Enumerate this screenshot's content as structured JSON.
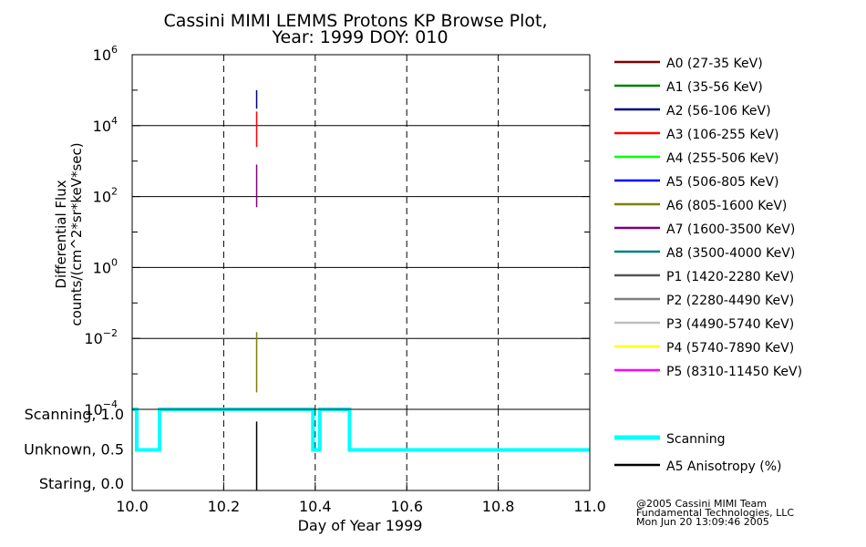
{
  "chart_data": {
    "type": "line",
    "title": "Cassini MIMI LEMMS Protons KP Browse Plot,",
    "subtitle": "Year: 1999 DOY: 010",
    "top_panel": {
      "ylabel_line1": "Differential Flux",
      "ylabel_line2": "counts/(cm^2*sr*keV*sec)",
      "yscale": "log",
      "ylim_exp": [
        -4,
        6
      ],
      "ytick_exps": [
        -4,
        -2,
        0,
        2,
        4,
        6
      ],
      "xlim": [
        10.0,
        11.0
      ],
      "grid": true,
      "spikes": [
        {
          "channel": "A2",
          "x": 10.272,
          "y_low": 30000,
          "y_high": 100000
        },
        {
          "channel": "A3",
          "x": 10.272,
          "y_low": 2500,
          "y_high": 25000
        },
        {
          "channel": "A7",
          "x": 10.272,
          "y_low": 50,
          "y_high": 800
        },
        {
          "channel": "A6",
          "x": 10.272,
          "y_low": 0.0003,
          "y_high": 0.015
        }
      ]
    },
    "bottom_panel": {
      "ytick_labels": [
        "Scanning, 1.0",
        "Unknown, 0.5",
        "Staring, 0.0"
      ],
      "ytick_values": [
        1.0,
        0.5,
        0.0
      ],
      "ylim": [
        0.0,
        1.0
      ],
      "scanning_series": {
        "name": "Scanning",
        "x": [
          10.0,
          10.01,
          10.01,
          10.06,
          10.06,
          10.395,
          10.395,
          10.41,
          10.41,
          10.475,
          10.475,
          11.0
        ],
        "y": [
          1.0,
          1.0,
          0.5,
          0.5,
          1.0,
          1.0,
          0.5,
          0.5,
          1.0,
          1.0,
          0.5,
          0.5
        ]
      },
      "anisotropy_series": {
        "name": "A5 Anisotropy (%)",
        "x": 10.272,
        "y_low": 0.0,
        "y_high": 0.85
      }
    },
    "xaxis": {
      "xlabel": "Day of Year 1999",
      "tick_values": [
        10.0,
        10.2,
        10.4,
        10.6,
        10.8,
        11.0
      ],
      "tick_labels": [
        "10.0",
        "10.2",
        "10.4",
        "10.6",
        "10.8",
        "11.0"
      ]
    },
    "legend": [
      {
        "label": "A0 (27-35 KeV)",
        "color": "#7f0000"
      },
      {
        "label": "A1 (35-56 KeV)",
        "color": "#007f00"
      },
      {
        "label": "A2 (56-106 KeV)",
        "color": "#00007f"
      },
      {
        "label": "A3 (106-255 KeV)",
        "color": "#ff0000"
      },
      {
        "label": "A4 (255-506 KeV)",
        "color": "#00ff00"
      },
      {
        "label": "A5 (506-805 KeV)",
        "color": "#0000ff"
      },
      {
        "label": "A6 (805-1600 KeV)",
        "color": "#7f7f00"
      },
      {
        "label": "A7 (1600-3500 KeV)",
        "color": "#7f007f"
      },
      {
        "label": "A8 (3500-4000 KeV)",
        "color": "#007f7f"
      },
      {
        "label": "P1 (1420-2280 KeV)",
        "color": "#555555"
      },
      {
        "label": "P2 (2280-4490 KeV)",
        "color": "#7f7f7f"
      },
      {
        "label": "P3 (4490-5740 KeV)",
        "color": "#bfbfbf"
      },
      {
        "label": "P4 (5740-7890 KeV)",
        "color": "#ffff00"
      },
      {
        "label": "P5 (8310-11450 KeV)",
        "color": "#ff00ff"
      }
    ],
    "legend2": [
      {
        "label": "Scanning",
        "color": "#00ffff"
      },
      {
        "label": "A5 Anisotropy (%)",
        "color": "#000000"
      }
    ],
    "credits": [
      "@2005 Cassini MIMI Team",
      "Fundamental Technologies, LLC",
      "Mon Jun 20 13:09:46 2005"
    ]
  }
}
